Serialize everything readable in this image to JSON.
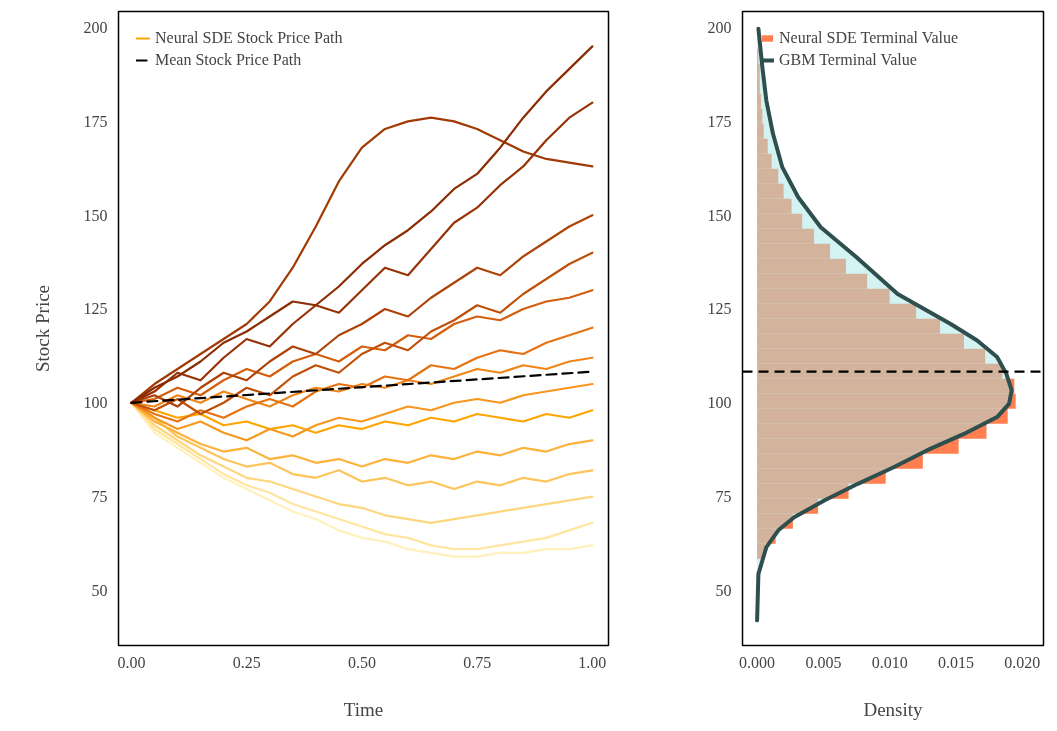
{
  "chart_data": [
    {
      "type": "line",
      "xlabel": "Time",
      "ylabel": "Stock Price",
      "legend": "top left",
      "x": [
        0,
        0.05,
        0.1,
        0.15,
        0.2,
        0.25,
        0.3,
        0.35,
        0.4,
        0.45,
        0.5,
        0.55,
        0.6,
        0.65,
        0.7,
        0.75,
        0.8,
        0.85,
        0.9,
        0.95,
        1
      ],
      "xlim": [
        -0.028,
        1.035
      ],
      "ylim": [
        35.3,
        204.3
      ],
      "xticks": [
        {
          "value": 0,
          "label": "0.00"
        },
        {
          "value": 0.25,
          "label": "0.25"
        },
        {
          "value": 0.5,
          "label": "0.50"
        },
        {
          "value": 0.75,
          "label": "0.75"
        },
        {
          "value": 1,
          "label": "1.00"
        }
      ],
      "yticks": [
        50,
        75,
        100,
        125,
        150,
        175,
        200
      ],
      "series": [
        {
          "color": "#fff1bd",
          "values": [
            100,
            92,
            88,
            84,
            80,
            77,
            74,
            71,
            69,
            66,
            64,
            63,
            61,
            60,
            59,
            59,
            60,
            60,
            61,
            61,
            62
          ]
        },
        {
          "color": "#ffe59f",
          "values": [
            100,
            93,
            89,
            85,
            81,
            78,
            76,
            73,
            71,
            69,
            67,
            65,
            64,
            62,
            61,
            61,
            62,
            63,
            64,
            66,
            68
          ]
        },
        {
          "color": "#fed67e",
          "values": [
            100,
            94,
            90,
            86,
            83,
            80,
            79,
            77,
            75,
            73,
            72,
            70,
            69,
            68,
            69,
            70,
            71,
            72,
            73,
            74,
            75
          ]
        },
        {
          "color": "#fec45c",
          "values": [
            100,
            96,
            91,
            88,
            85,
            83,
            84,
            81,
            80,
            82,
            79,
            80,
            78,
            79,
            77,
            79,
            78,
            80,
            79,
            81,
            82
          ]
        },
        {
          "color": "#fdb23c",
          "values": [
            100,
            95,
            92,
            89,
            87,
            88,
            85,
            86,
            84,
            85,
            83,
            85,
            84,
            86,
            85,
            87,
            86,
            88,
            87,
            89,
            90
          ]
        },
        {
          "name": "Neural SDE Stock Price Path",
          "color": "#ffa500",
          "values": [
            100,
            98,
            96,
            97,
            94,
            95,
            93,
            94,
            92,
            94,
            93,
            95,
            94,
            96,
            95,
            97,
            96,
            95,
            97,
            96,
            98
          ]
        },
        {
          "color": "#f7971f",
          "values": [
            100,
            96,
            93,
            95,
            92,
            90,
            93,
            91,
            94,
            96,
            95,
            97,
            99,
            98,
            100,
            101,
            100,
            102,
            103,
            104,
            105
          ]
        },
        {
          "color": "#f08518",
          "values": [
            100,
            99,
            102,
            100,
            103,
            101,
            99,
            102,
            104,
            103,
            105,
            104,
            106,
            105,
            107,
            109,
            108,
            110,
            109,
            111,
            112
          ]
        },
        {
          "color": "#e67312",
          "values": [
            100,
            97,
            95,
            98,
            96,
            99,
            101,
            99,
            103,
            105,
            104,
            107,
            106,
            110,
            109,
            112,
            114,
            113,
            116,
            118,
            120
          ]
        },
        {
          "color": "#d45e0c",
          "values": [
            100,
            101,
            104,
            102,
            106,
            109,
            107,
            111,
            113,
            111,
            115,
            114,
            118,
            117,
            121,
            123,
            122,
            125,
            127,
            128,
            130
          ]
        },
        {
          "color": "#c05008",
          "values": [
            100,
            98,
            101,
            97,
            100,
            104,
            102,
            107,
            110,
            108,
            113,
            116,
            114,
            119,
            122,
            126,
            124,
            129,
            133,
            137,
            140
          ]
        },
        {
          "color": "#ae4206",
          "values": [
            100,
            102,
            99,
            104,
            108,
            106,
            111,
            115,
            113,
            118,
            121,
            125,
            123,
            128,
            132,
            136,
            134,
            139,
            143,
            147,
            150
          ]
        },
        {
          "color": "#a13a05",
          "values": [
            100,
            105,
            109,
            113,
            117,
            121,
            127,
            136,
            147,
            159,
            168,
            173,
            175,
            176,
            175,
            173,
            170,
            167,
            165,
            164,
            163
          ]
        },
        {
          "color": "#963205",
          "values": [
            100,
            103,
            108,
            106,
            112,
            117,
            115,
            121,
            126,
            124,
            130,
            136,
            134,
            141,
            148,
            152,
            158,
            163,
            170,
            176,
            180
          ]
        },
        {
          "color": "#8b2c04",
          "values": [
            100,
            104,
            107,
            111,
            116,
            119,
            123,
            127,
            126,
            131,
            137,
            142,
            146,
            151,
            157,
            161,
            168,
            176,
            183,
            189,
            195
          ]
        },
        {
          "name": "Mean Stock Price Path",
          "color": "#000000",
          "line_style": "dashed",
          "x": [
            0,
            1
          ],
          "values": [
            100,
            108.3
          ]
        }
      ]
    },
    {
      "type": "histogram",
      "orientation": "horizontal",
      "xlabel": "Density",
      "legend": "top left",
      "xlim": [
        -0.0011,
        0.0216
      ],
      "ylim": [
        35.3,
        204.3
      ],
      "xticks": [
        {
          "value": 0,
          "label": "0.000"
        },
        {
          "value": 0.005,
          "label": "0.005"
        },
        {
          "value": 0.01,
          "label": "0.010"
        },
        {
          "value": 0.015,
          "label": "0.015"
        },
        {
          "value": 0.02,
          "label": "0.020"
        }
      ],
      "yticks": [
        50,
        75,
        100,
        125,
        150,
        175,
        200
      ],
      "ref_lines": [
        {
          "axis": "y",
          "value": 108.3,
          "color": "#000000",
          "line_style": "dashed"
        }
      ],
      "series": [
        {
          "name": "Neural SDE Terminal Value",
          "type": "histogram",
          "color": "#ff7f50",
          "bins": [
            58.4,
            62.4,
            66.4,
            70.4,
            74.4,
            78.4,
            82.4,
            86.4,
            90.4,
            94.4,
            98.4,
            102.4,
            106.4,
            110.4,
            114.4,
            118.4,
            122.4,
            126.4,
            130.4,
            134.4,
            138.4,
            142.4,
            146.4,
            150.4,
            154.4,
            158.4,
            162.4,
            166.4,
            170.4,
            174.4,
            178.4,
            182.4,
            186.4,
            190.4,
            194.4,
            198.4
          ],
          "values": [
            0.0006,
            0.0014,
            0.0027,
            0.0046,
            0.0069,
            0.0097,
            0.0125,
            0.0152,
            0.0173,
            0.0189,
            0.0195,
            0.0194,
            0.0185,
            0.0172,
            0.0156,
            0.0138,
            0.012,
            0.01,
            0.0083,
            0.0067,
            0.0055,
            0.0043,
            0.0034,
            0.0026,
            0.002,
            0.0016,
            0.0011,
            0.0008,
            0.0005,
            0.0004,
            0.0003,
            0.0002,
            0.0002,
            0.0001,
            null
          ]
        },
        {
          "name": "GBM Terminal Value",
          "type": "area",
          "color": "#2f4f4f",
          "x": [
            42.0,
            54.4,
            61.5,
            66.0,
            69.5,
            74.0,
            78.4,
            82.8,
            87.3,
            91.7,
            96.2,
            99.7,
            103.3,
            107.7,
            112.2,
            116.6,
            121.0,
            129.0,
            138.8,
            146.8,
            154.8,
            162.8,
            171.7,
            180.5,
            189.4,
            199.7
          ],
          "values": [
            0.0,
            0.0001,
            0.0007,
            0.0016,
            0.0028,
            0.0051,
            0.0076,
            0.0103,
            0.0128,
            0.0156,
            0.0181,
            0.019,
            0.0192,
            0.0188,
            0.0181,
            0.0166,
            0.0146,
            0.0106,
            0.0075,
            0.0048,
            0.0031,
            0.0019,
            0.0012,
            0.0007,
            0.0004,
            0.0001
          ]
        }
      ]
    }
  ]
}
